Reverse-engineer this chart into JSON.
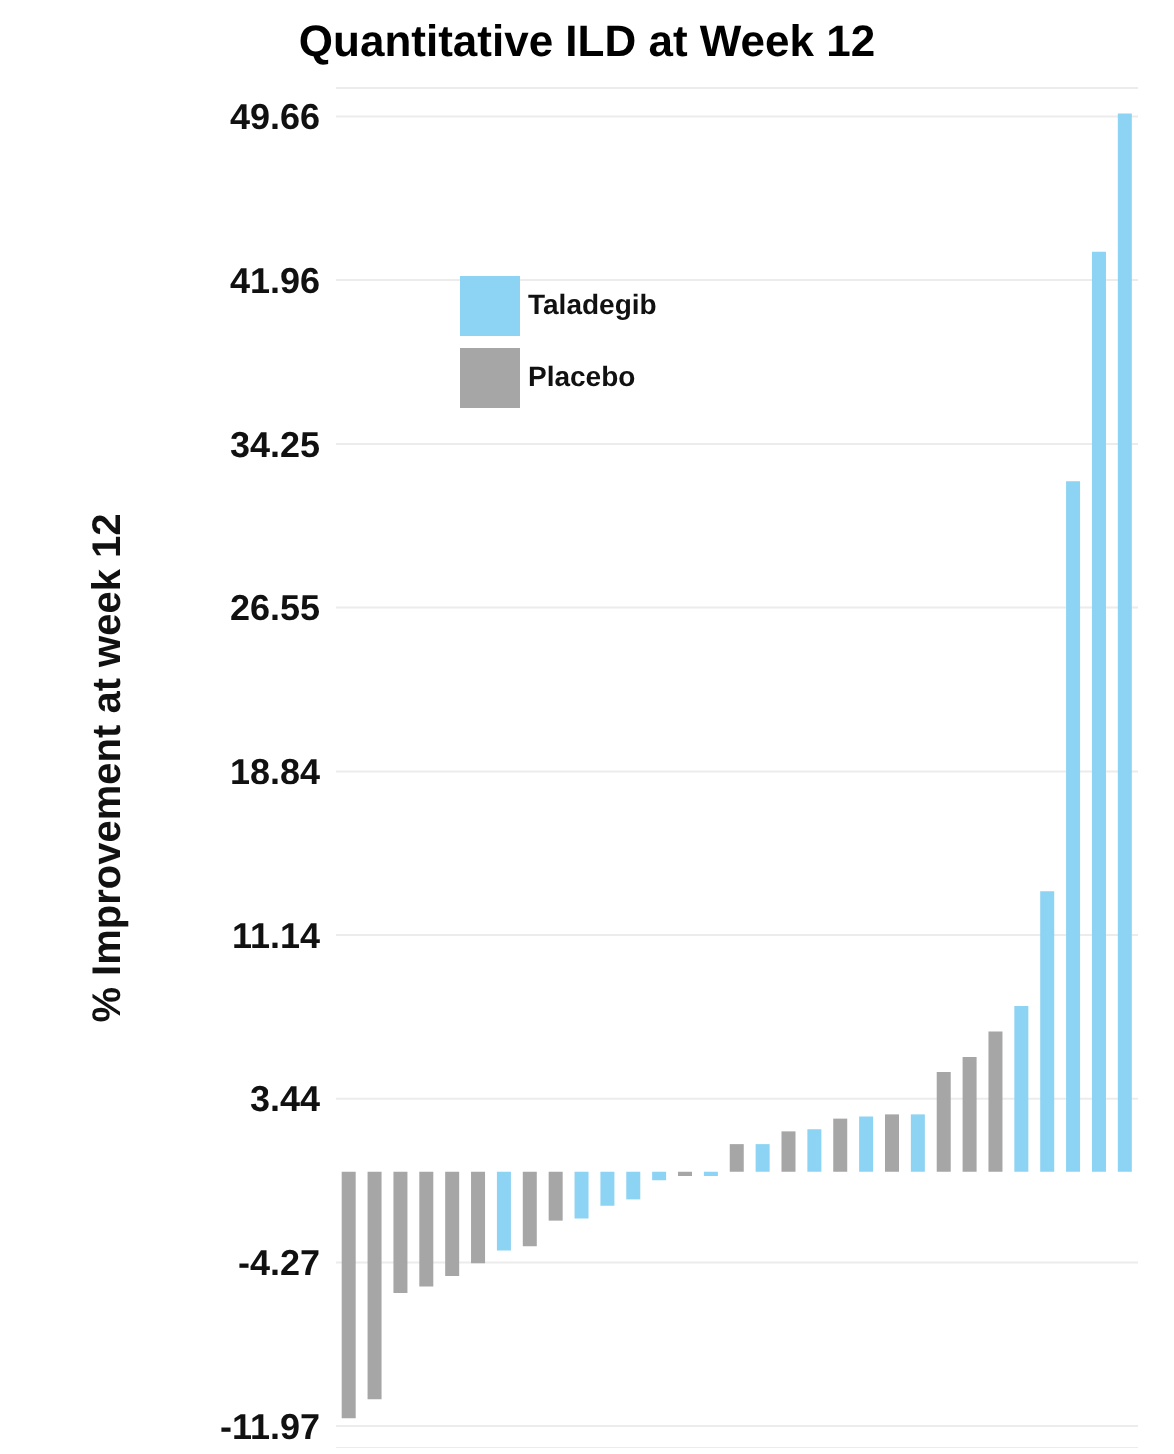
{
  "chart_data": {
    "type": "bar",
    "title": "Quantitative ILD at Week 12",
    "ylabel": "% Improvement at week 12",
    "categories": [
      null,
      null,
      null,
      null,
      null,
      null,
      null,
      null,
      null,
      null,
      null,
      null,
      null,
      null,
      null,
      null,
      null,
      null,
      null,
      null,
      null,
      null,
      null,
      null,
      null,
      null,
      null,
      null,
      null,
      null,
      null
    ],
    "series": [
      {
        "name": "Taladegib",
        "color": "#8dd3f3",
        "values": [
          null,
          null,
          null,
          null,
          null,
          null,
          -3.7,
          null,
          null,
          -2.2,
          -1.6,
          -1.3,
          -0.4,
          null,
          -0.2,
          null,
          1.3,
          null,
          2.0,
          null,
          2.6,
          null,
          2.7,
          null,
          null,
          null,
          7.8,
          13.2,
          32.5,
          43.3,
          49.8
        ]
      },
      {
        "name": "Placebo",
        "color": "#a6a6a6",
        "values": [
          -11.6,
          -10.7,
          -5.7,
          -5.4,
          -4.9,
          -4.3,
          null,
          -3.5,
          -2.3,
          null,
          null,
          null,
          null,
          -0.2,
          null,
          1.3,
          null,
          1.9,
          null,
          2.5,
          null,
          2.7,
          null,
          4.7,
          5.4,
          6.6,
          null,
          null,
          null,
          null,
          null
        ]
      }
    ],
    "stacked": true,
    "ylim": [
      -13,
      51
    ],
    "yticks": [
      -11.97,
      -4.27,
      3.44,
      11.14,
      18.84,
      26.55,
      34.25,
      41.96,
      49.66
    ],
    "tick_labels": "y",
    "grid": "y",
    "legend": "top left"
  }
}
